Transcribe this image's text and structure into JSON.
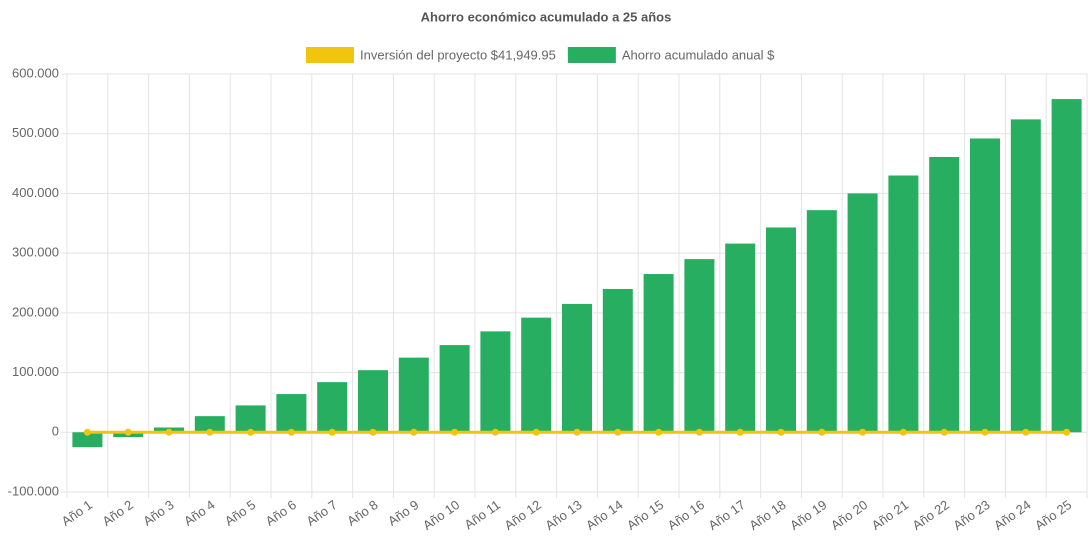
{
  "chart_data": {
    "type": "bar",
    "title": "Ahorro económico acumulado a 25 años",
    "categories": [
      "Año 1",
      "Año 2",
      "Año 3",
      "Año 4",
      "Año 5",
      "Año 6",
      "Año 7",
      "Año 8",
      "Año 9",
      "Año 10",
      "Año 11",
      "Año 12",
      "Año 13",
      "Año 14",
      "Año 15",
      "Año 16",
      "Año 17",
      "Año 18",
      "Año 19",
      "Año 20",
      "Año 21",
      "Año 22",
      "Año 23",
      "Año 24",
      "Año 25"
    ],
    "series": [
      {
        "name": "Inversión del proyecto $41,949.95",
        "type": "line",
        "color": "#f1c40f",
        "values": [
          0,
          0,
          0,
          0,
          0,
          0,
          0,
          0,
          0,
          0,
          0,
          0,
          0,
          0,
          0,
          0,
          0,
          0,
          0,
          0,
          0,
          0,
          0,
          0,
          0
        ]
      },
      {
        "name": "Ahorro acumulado anual $",
        "type": "bar",
        "color": "#27ae60",
        "values": [
          -25000,
          -8000,
          8000,
          27000,
          45000,
          64000,
          84000,
          104000,
          125000,
          146000,
          169000,
          192000,
          215000,
          240000,
          265000,
          290000,
          316000,
          343000,
          372000,
          400000,
          430000,
          461000,
          492000,
          524000,
          558000
        ]
      }
    ],
    "ylim": [
      -100000,
      600000
    ],
    "yticks": [
      {
        "value": -100000,
        "label": "-100.000"
      },
      0,
      {
        "value": 100000,
        "label": "100.000"
      },
      {
        "value": 200000,
        "label": "200.000"
      },
      {
        "value": 300000,
        "label": "300.000"
      },
      {
        "value": 400000,
        "label": "400.000"
      },
      {
        "value": 500000,
        "label": "500.000"
      },
      {
        "value": 600000,
        "label": "600.000"
      }
    ],
    "grid": true
  }
}
